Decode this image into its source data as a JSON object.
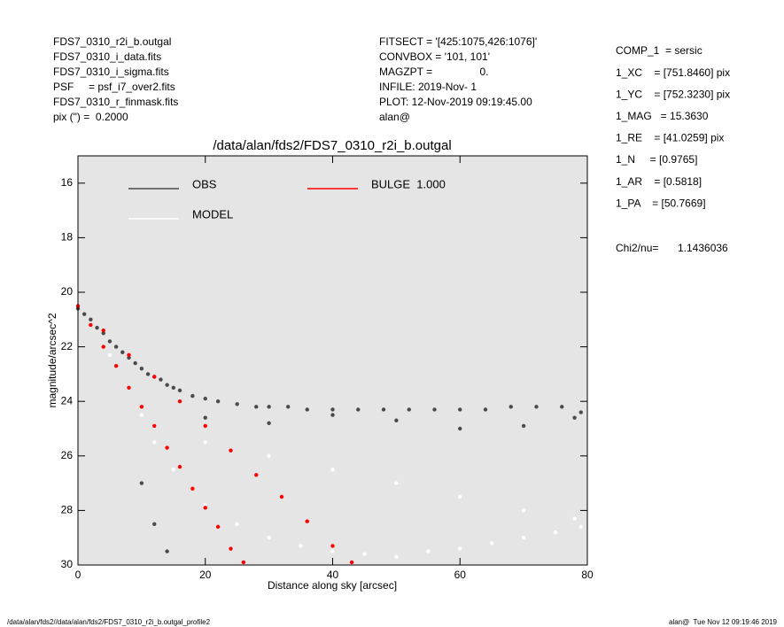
{
  "header": {
    "left": [
      "FDS7_0310_r2i_b.outgal",
      "FDS7_0310_i_data.fits",
      "FDS7_0310_i_sigma.fits",
      "PSF     = psf_i7_over2.fits",
      "FDS7_0310_r_finmask.fits",
      "pix (\") =  0.2000"
    ],
    "middle": [
      "FITSECT = '[425:1075,426:1076]'",
      "CONVBOX = '101, 101'",
      "MAGZPT =                0.",
      "INFILE: 2019-Nov- 1",
      "PLOT: 12-Nov-2019 09:19:45.00",
      "alan@"
    ],
    "right": [
      "COMP_1  = sersic",
      "1_XC    = [751.8460] pix",
      "1_YC    = [752.3230] pix",
      "1_MAG   = 15.3630",
      "1_RE    = [41.0259] pix",
      "1_N     = [0.9765]",
      "1_AR    = [0.5818]",
      "1_PA    = [50.7669]"
    ],
    "chi2_label": "Chi2/nu=",
    "chi2_value": "1.1436036"
  },
  "footer": {
    "left": "/data/alan/fds2//data/alan/fds2/FDS7_0310_r2i_b.outgal_profile2",
    "right": "alan@  Tue Nov 12 09:19:46 2019"
  },
  "chart_data": {
    "type": "scatter",
    "title": "/data/alan/fds2/FDS7_0310_r2i_b.outgal",
    "x_label": "Distance along sky [arcsec]",
    "y_label": "magnitude/arcsec^2",
    "xlim": [
      0,
      80
    ],
    "xticks": [
      0,
      20,
      40,
      60,
      80
    ],
    "ylim": [
      30,
      15
    ],
    "yticks": [
      16,
      18,
      20,
      22,
      24,
      26,
      28,
      30
    ],
    "series": [
      {
        "name": "OBS",
        "color": "#4a4a4a",
        "x": [
          0,
          1,
          2,
          3,
          4,
          5,
          6,
          7,
          8,
          9,
          10,
          11,
          12,
          13,
          14,
          15,
          16,
          18,
          20,
          22,
          25,
          28,
          30,
          33,
          36,
          40,
          44,
          48,
          52,
          56,
          60,
          64,
          68,
          72,
          76,
          79,
          10,
          12,
          14,
          20,
          30,
          40,
          50,
          60,
          70,
          78
        ],
        "values": [
          20.6,
          20.8,
          21.0,
          21.3,
          21.5,
          21.8,
          22.0,
          22.2,
          22.4,
          22.6,
          22.8,
          23.0,
          23.1,
          23.2,
          23.4,
          23.5,
          23.6,
          23.8,
          23.9,
          24.0,
          24.1,
          24.2,
          24.2,
          24.2,
          24.3,
          24.3,
          24.3,
          24.3,
          24.3,
          24.3,
          24.3,
          24.3,
          24.2,
          24.2,
          24.2,
          24.4,
          27.0,
          28.5,
          29.5,
          24.6,
          24.8,
          24.5,
          24.7,
          25.0,
          24.9,
          24.6
        ]
      },
      {
        "name": "MODEL",
        "color": "#ffffff",
        "x": [
          5,
          8,
          10,
          12,
          15,
          18,
          20,
          25,
          30,
          35,
          40,
          45,
          50,
          55,
          60,
          65,
          70,
          75,
          79,
          20,
          30,
          40,
          50,
          60,
          70,
          78
        ],
        "values": [
          22.3,
          23.5,
          24.5,
          25.5,
          26.5,
          27.2,
          27.8,
          28.5,
          29.0,
          29.3,
          29.5,
          29.6,
          29.7,
          29.5,
          29.4,
          29.2,
          29.0,
          28.8,
          28.6,
          25.5,
          26.0,
          26.5,
          27.0,
          27.5,
          28.0,
          28.3
        ]
      },
      {
        "name": "BULGE  1.000",
        "color": "#ff0000",
        "x": [
          0,
          2,
          4,
          6,
          8,
          10,
          12,
          14,
          16,
          18,
          20,
          22,
          24,
          26,
          4,
          8,
          12,
          16,
          20,
          24,
          28,
          32,
          36,
          40,
          43
        ],
        "values": [
          20.5,
          21.2,
          22.0,
          22.7,
          23.5,
          24.2,
          24.9,
          25.7,
          26.4,
          27.2,
          27.9,
          28.6,
          29.4,
          29.9,
          21.4,
          22.3,
          23.1,
          24.0,
          24.9,
          25.8,
          26.7,
          27.5,
          28.4,
          29.3,
          29.9
        ]
      }
    ]
  }
}
